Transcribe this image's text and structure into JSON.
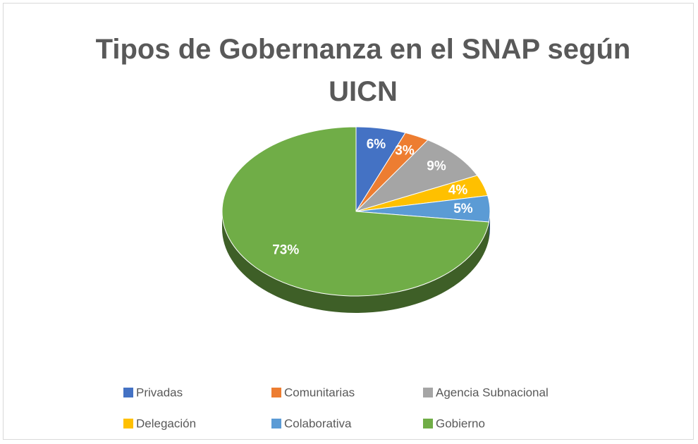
{
  "chart_data": {
    "type": "pie",
    "title": "Tipos de Gobernanza en el SNAP según UICN",
    "categories": [
      "Privadas",
      "Comunitarias",
      "Agencia Subnacional",
      "Delegación",
      "Colaborativa",
      "Gobierno"
    ],
    "values": [
      6,
      3,
      9,
      4,
      5,
      73
    ],
    "value_labels": [
      "6%",
      "3%",
      "9%",
      "4%",
      "5%",
      "73%"
    ],
    "colors": [
      "#4472c4",
      "#ed7d31",
      "#a5a5a5",
      "#ffc000",
      "#5b9bd5",
      "#70ad47"
    ],
    "legend": "bottom"
  }
}
